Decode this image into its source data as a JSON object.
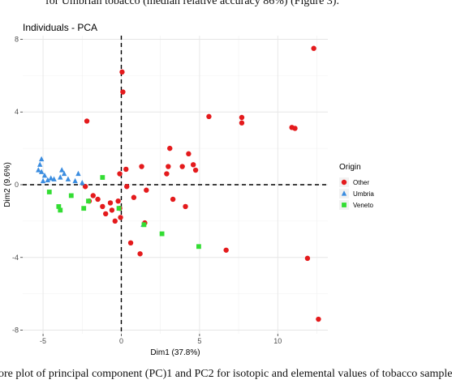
{
  "caption_top": "for Umbrian tobacco (median relative accuracy 86%) (Figure 3).",
  "caption_bottom": "ore plot of principal component (PC)1 and PC2 for isotopic and elemental values of tobacco sample",
  "chart_data": {
    "type": "scatter",
    "title": "Individuals - PCA",
    "xlabel": "Dim1 (37.8%)",
    "ylabel": "Dim2 (9.6%)",
    "xlim": [
      -6.3,
      13.2
    ],
    "ylim": [
      -8.2,
      8.2
    ],
    "xticks": [
      -5,
      0,
      5,
      10
    ],
    "yticks": [
      -8,
      -4,
      0,
      4,
      8
    ],
    "xtick_labels": [
      "-5",
      "0",
      "5",
      "10"
    ],
    "ytick_labels": [
      "-8",
      "-4",
      "0",
      "4",
      "8"
    ],
    "grid": true,
    "reference_lines": {
      "x": 0,
      "y": 0,
      "style": "dashed"
    },
    "legend": {
      "title": "Origin",
      "position": "right"
    },
    "series": [
      {
        "name": "Other",
        "color": "#e41a1c",
        "shape": "circle",
        "points": [
          [
            12.3,
            7.5
          ],
          [
            0.05,
            6.2
          ],
          [
            0.1,
            5.1
          ],
          [
            -2.2,
            3.5
          ],
          [
            5.6,
            3.75
          ],
          [
            7.7,
            3.7
          ],
          [
            7.7,
            3.4
          ],
          [
            11.1,
            3.1
          ],
          [
            10.9,
            3.15
          ],
          [
            3.1,
            2.0
          ],
          [
            4.3,
            1.7
          ],
          [
            4.6,
            1.1
          ],
          [
            3.9,
            1.0
          ],
          [
            4.75,
            0.8
          ],
          [
            0.3,
            0.85
          ],
          [
            -0.1,
            0.6
          ],
          [
            1.3,
            1.0
          ],
          [
            3.0,
            1.0
          ],
          [
            2.9,
            0.6
          ],
          [
            3.3,
            -0.8
          ],
          [
            0.35,
            -0.1
          ],
          [
            -1.8,
            -0.6
          ],
          [
            -1.5,
            -0.8
          ],
          [
            -1.2,
            -1.2
          ],
          [
            -1.0,
            -1.6
          ],
          [
            -0.7,
            -1.0
          ],
          [
            -0.6,
            -1.4
          ],
          [
            -0.2,
            -0.9
          ],
          [
            -0.4,
            -2.0
          ],
          [
            -0.1,
            -1.3
          ],
          [
            -0.05,
            -1.8
          ],
          [
            1.6,
            -0.3
          ],
          [
            0.8,
            -0.7
          ],
          [
            1.5,
            -2.1
          ],
          [
            0.6,
            -3.2
          ],
          [
            1.2,
            -3.8
          ],
          [
            4.1,
            -1.2
          ],
          [
            6.7,
            -3.6
          ],
          [
            11.9,
            -4.05
          ],
          [
            12.6,
            -7.4
          ],
          [
            -2.05,
            -0.9
          ],
          [
            -2.3,
            -0.1
          ]
        ]
      },
      {
        "name": "Umbria",
        "color": "#3b8de0",
        "shape": "triangle",
        "points": [
          [
            -5.2,
            1.1
          ],
          [
            -5.1,
            0.7
          ],
          [
            -4.9,
            0.5
          ],
          [
            -5.0,
            0.2
          ],
          [
            -4.7,
            0.25
          ],
          [
            -4.5,
            0.35
          ],
          [
            -4.3,
            0.3
          ],
          [
            -3.8,
            0.8
          ],
          [
            -3.65,
            0.6
          ],
          [
            -3.9,
            0.4
          ],
          [
            -3.4,
            0.3
          ],
          [
            -2.95,
            0.2
          ],
          [
            -2.75,
            0.6
          ],
          [
            -2.5,
            0.1
          ],
          [
            -5.3,
            0.8
          ],
          [
            -5.1,
            1.4
          ],
          [
            1.4,
            -2.2
          ]
        ]
      },
      {
        "name": "Veneto",
        "color": "#33dd33",
        "shape": "square",
        "points": [
          [
            -1.2,
            0.4
          ],
          [
            -2.1,
            -0.9
          ],
          [
            -3.9,
            -1.4
          ],
          [
            -4.0,
            -1.2
          ],
          [
            -4.6,
            -0.4
          ],
          [
            -2.4,
            -1.3
          ],
          [
            -3.2,
            -0.6
          ],
          [
            -0.15,
            -1.3
          ],
          [
            2.6,
            -2.7
          ],
          [
            4.95,
            -3.4
          ],
          [
            1.45,
            -2.2
          ]
        ]
      }
    ]
  }
}
